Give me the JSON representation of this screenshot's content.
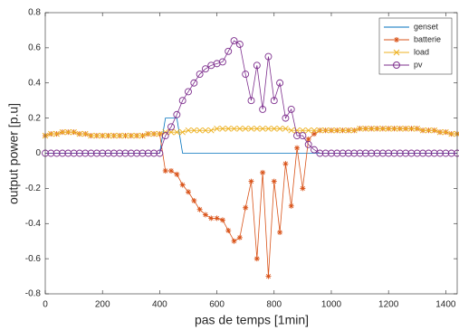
{
  "chart_data": {
    "type": "line",
    "xlabel": "pas de temps [1min]",
    "ylabel": "output power [p.u]",
    "xlim": [
      0,
      1440
    ],
    "ylim": [
      -0.8,
      0.8
    ],
    "xticks": [
      0,
      200,
      400,
      600,
      800,
      1000,
      1200,
      1400
    ],
    "yticks": [
      -0.8,
      -0.6,
      -0.4,
      -0.2,
      0,
      0.2,
      0.4,
      0.6,
      0.8
    ],
    "legend": "northeast",
    "x": [
      0,
      20,
      40,
      60,
      80,
      100,
      120,
      140,
      160,
      180,
      200,
      220,
      240,
      260,
      280,
      300,
      320,
      340,
      360,
      380,
      400,
      420,
      440,
      460,
      480,
      500,
      520,
      540,
      560,
      580,
      600,
      620,
      640,
      660,
      680,
      700,
      720,
      740,
      760,
      780,
      800,
      820,
      840,
      860,
      880,
      900,
      920,
      940,
      960,
      980,
      1000,
      1020,
      1040,
      1060,
      1080,
      1100,
      1120,
      1140,
      1160,
      1180,
      1200,
      1220,
      1240,
      1260,
      1280,
      1300,
      1320,
      1340,
      1360,
      1380,
      1400,
      1420,
      1440
    ],
    "series": [
      {
        "name": "genset",
        "color": "#0072bd",
        "marker": "none",
        "values": [
          0,
          0,
          0,
          0,
          0,
          0,
          0,
          0,
          0,
          0,
          0,
          0,
          0,
          0,
          0,
          0,
          0,
          0,
          0,
          0,
          0,
          0.2,
          0.2,
          0.2,
          0,
          0,
          0,
          0,
          0,
          0,
          0,
          0,
          0,
          0,
          0,
          0,
          0,
          0,
          0,
          0,
          0,
          0,
          0,
          0,
          0,
          0,
          0,
          0,
          0,
          0,
          0,
          0,
          0,
          0,
          0,
          0,
          0,
          0,
          0,
          0,
          0,
          0,
          0,
          0,
          0,
          0,
          0,
          0,
          0,
          0,
          0,
          0,
          0
        ]
      },
      {
        "name": "batterie",
        "color": "#d95319",
        "marker": "star",
        "values": [
          0.1,
          0.11,
          0.11,
          0.12,
          0.12,
          0.12,
          0.11,
          0.11,
          0.1,
          0.1,
          0.1,
          0.1,
          0.1,
          0.1,
          0.1,
          0.1,
          0.1,
          0.1,
          0.11,
          0.11,
          0.11,
          -0.1,
          -0.1,
          -0.12,
          -0.18,
          -0.22,
          -0.27,
          -0.32,
          -0.35,
          -0.37,
          -0.37,
          -0.38,
          -0.44,
          -0.5,
          -0.48,
          -0.31,
          -0.16,
          -0.6,
          -0.11,
          -0.7,
          -0.16,
          -0.45,
          -0.06,
          -0.3,
          0.03,
          -0.2,
          0.08,
          0.11,
          0.13,
          0.13,
          0.13,
          0.13,
          0.13,
          0.13,
          0.13,
          0.14,
          0.14,
          0.14,
          0.14,
          0.14,
          0.14,
          0.14,
          0.14,
          0.14,
          0.14,
          0.14,
          0.13,
          0.13,
          0.13,
          0.12,
          0.12,
          0.11,
          0.11
        ]
      },
      {
        "name": "load",
        "color": "#edb120",
        "marker": "x",
        "values": [
          0.1,
          0.11,
          0.11,
          0.12,
          0.12,
          0.12,
          0.11,
          0.11,
          0.1,
          0.1,
          0.1,
          0.1,
          0.1,
          0.1,
          0.1,
          0.1,
          0.1,
          0.1,
          0.11,
          0.11,
          0.11,
          0.12,
          0.12,
          0.12,
          0.12,
          0.13,
          0.13,
          0.13,
          0.13,
          0.13,
          0.14,
          0.14,
          0.14,
          0.14,
          0.14,
          0.14,
          0.14,
          0.14,
          0.14,
          0.14,
          0.14,
          0.14,
          0.14,
          0.13,
          0.13,
          0.13,
          0.13,
          0.13,
          0.13,
          0.13,
          0.13,
          0.13,
          0.13,
          0.13,
          0.13,
          0.14,
          0.14,
          0.14,
          0.14,
          0.14,
          0.14,
          0.14,
          0.14,
          0.14,
          0.14,
          0.14,
          0.13,
          0.13,
          0.13,
          0.12,
          0.12,
          0.11,
          0.11
        ]
      },
      {
        "name": "pv",
        "color": "#7e2f8e",
        "marker": "circle",
        "values": [
          0,
          0,
          0,
          0,
          0,
          0,
          0,
          0,
          0,
          0,
          0,
          0,
          0,
          0,
          0,
          0,
          0,
          0,
          0,
          0,
          0,
          0.1,
          0.15,
          0.22,
          0.3,
          0.35,
          0.4,
          0.45,
          0.48,
          0.5,
          0.51,
          0.52,
          0.58,
          0.64,
          0.62,
          0.45,
          0.3,
          0.5,
          0.25,
          0.55,
          0.3,
          0.4,
          0.2,
          0.25,
          0.1,
          0.1,
          0.05,
          0.02,
          0,
          0,
          0,
          0,
          0,
          0,
          0,
          0,
          0,
          0,
          0,
          0,
          0,
          0,
          0,
          0,
          0,
          0,
          0,
          0,
          0,
          0,
          0,
          0,
          0
        ]
      }
    ]
  }
}
